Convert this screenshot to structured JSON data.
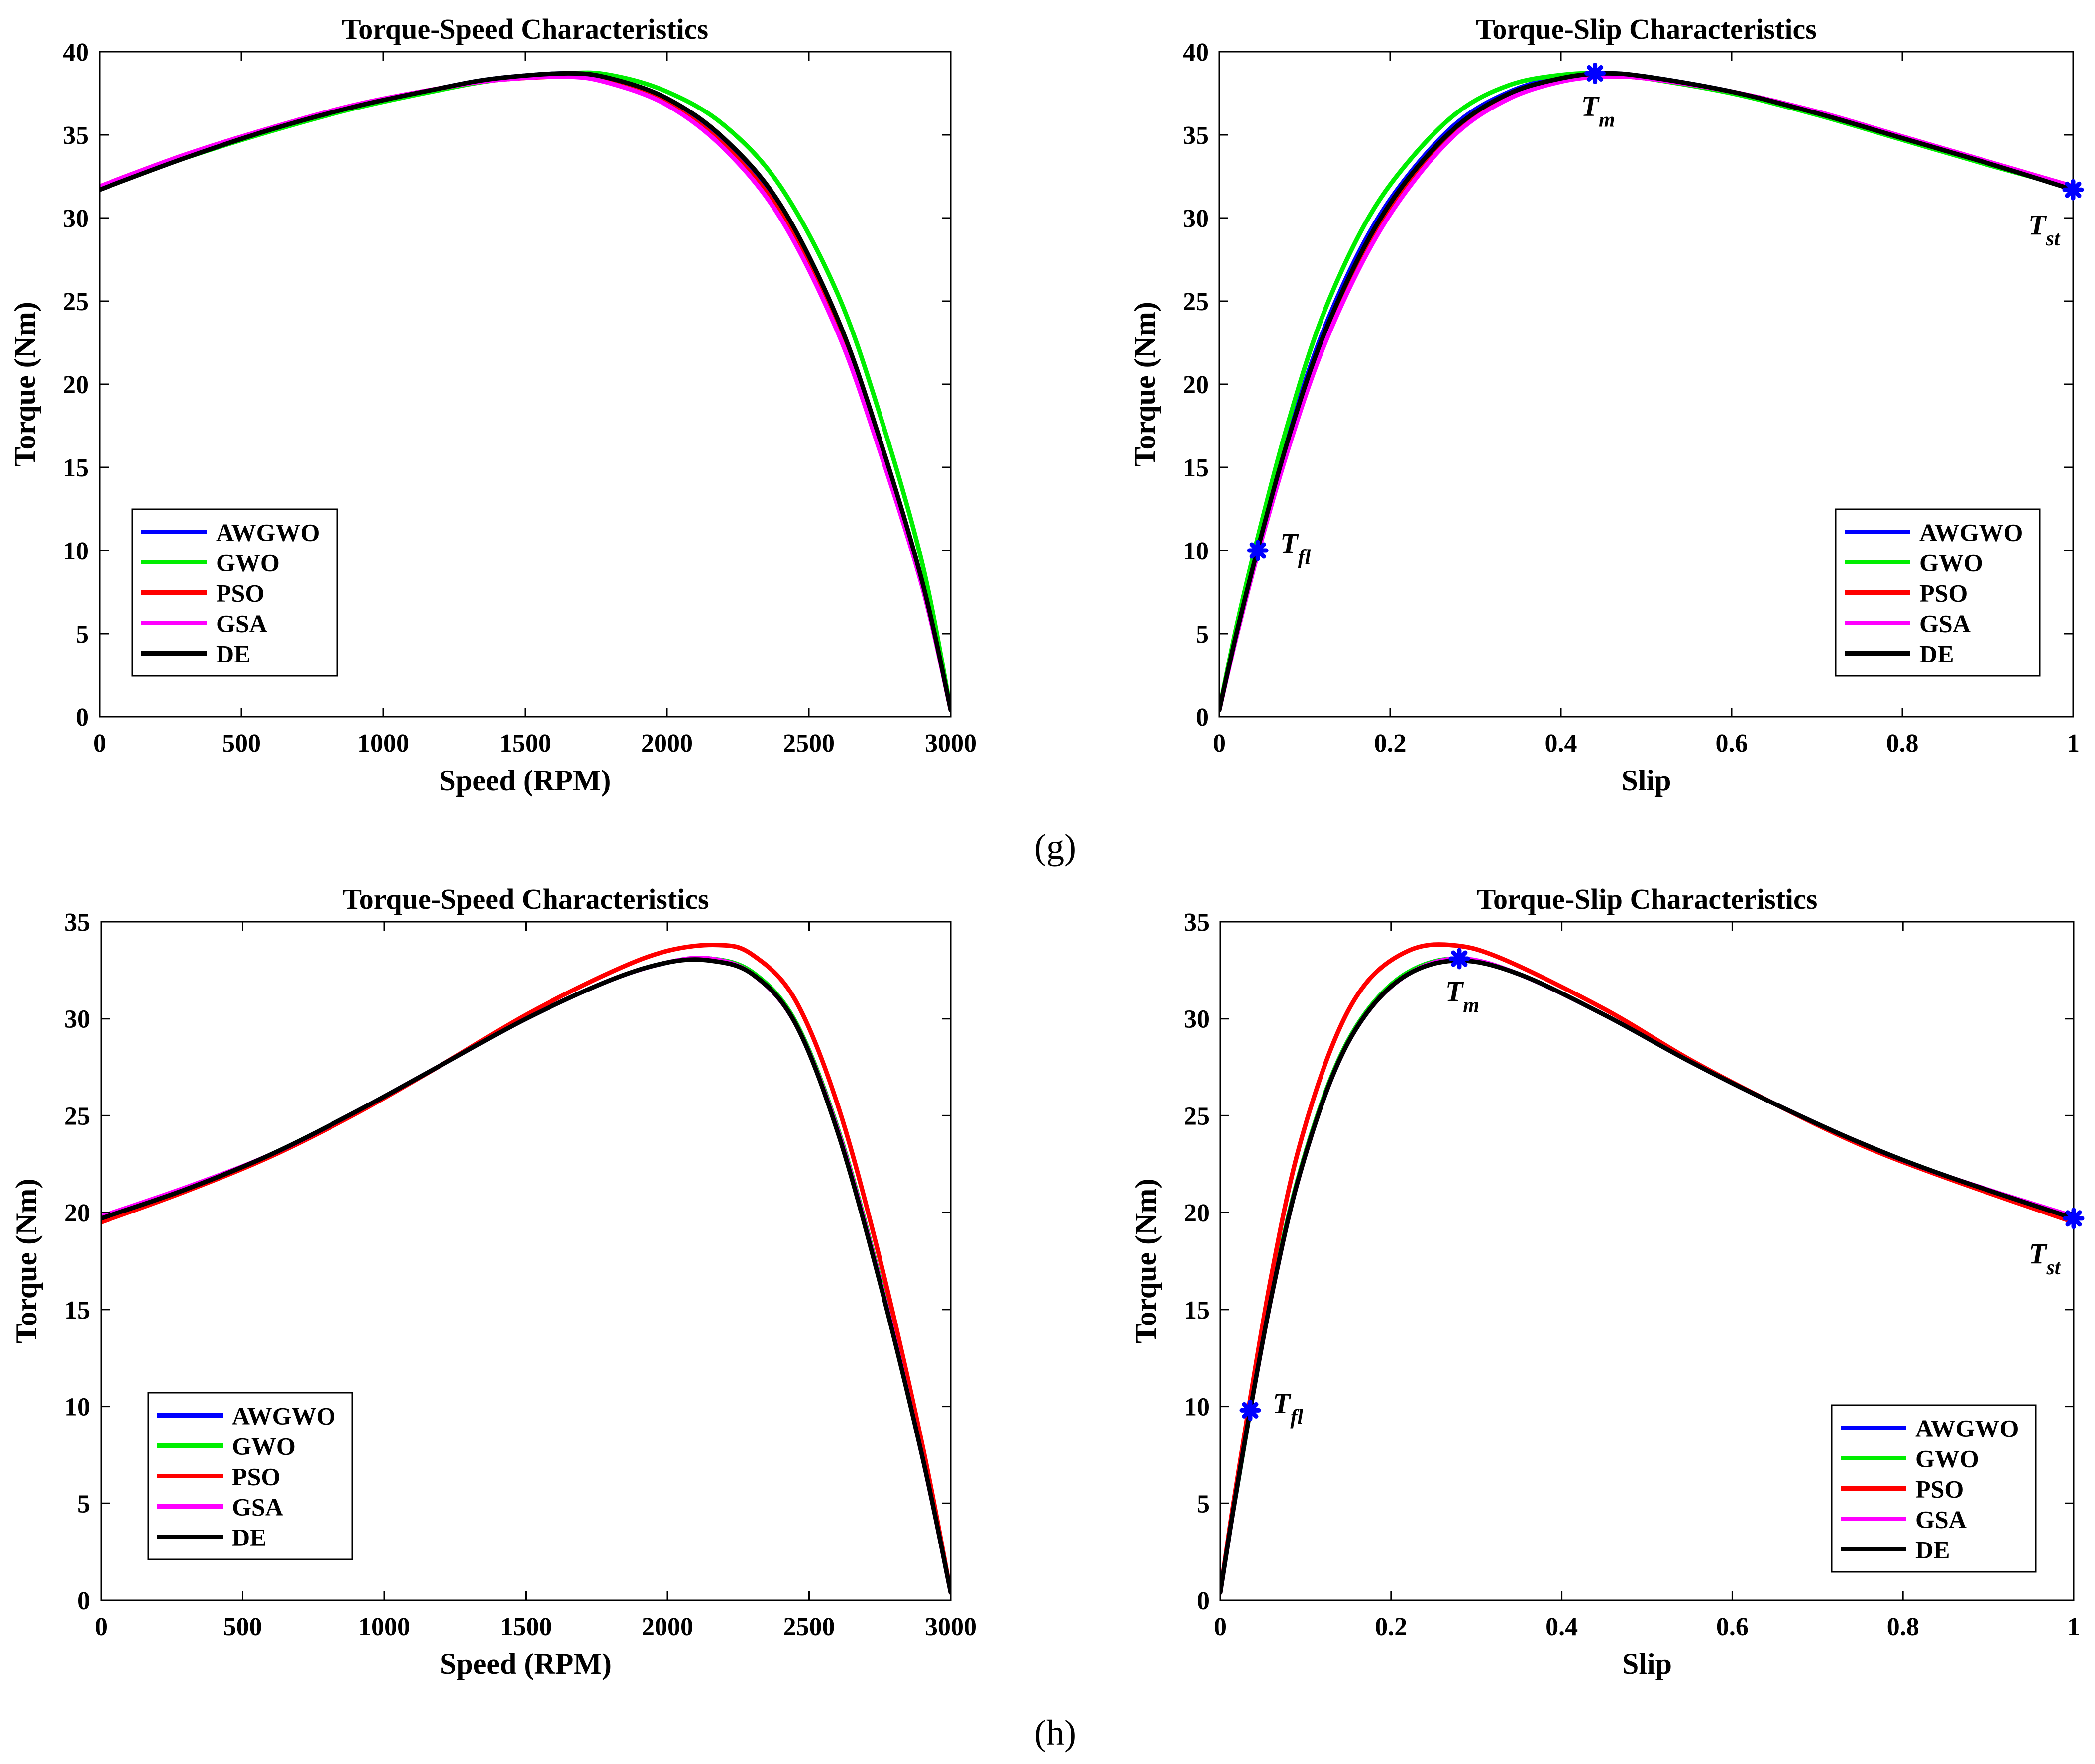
{
  "labels": {
    "g": "(g)",
    "h": "(h)"
  },
  "colors": {
    "AWGWO": "#0000ff",
    "GWO": "#00ee00",
    "PSO": "#ff0000",
    "GSA": "#ff00ff",
    "DE": "#000000",
    "marker": "#0000ff"
  },
  "chart_data": [
    {
      "id": "g-speed",
      "type": "line",
      "title": "Torque-Speed Characteristics",
      "xlabel": "Speed (RPM)",
      "ylabel": "Torque (Nm)",
      "xlim": [
        0,
        3000
      ],
      "ylim": [
        0,
        40
      ],
      "xticks": [
        0,
        500,
        1000,
        1500,
        2000,
        2500,
        3000
      ],
      "xticklabels": [
        "0",
        "500",
        "1000",
        "1500",
        "2000",
        "2500",
        "3000"
      ],
      "yticks": [
        0,
        5,
        10,
        15,
        20,
        25,
        30,
        35,
        40
      ],
      "yticklabels": [
        "0",
        "5",
        "10",
        "15",
        "20",
        "25",
        "30",
        "35",
        "40"
      ],
      "grid": false,
      "legend": "bottom-left",
      "series": [
        {
          "name": "AWGWO",
          "x": [
            0,
            300,
            600,
            900,
            1200,
            1400,
            1650,
            1800,
            2000,
            2200,
            2400,
            2600,
            2750,
            2900,
            3000
          ],
          "y": [
            31.8,
            33.7,
            35.3,
            36.7,
            37.8,
            38.4,
            38.7,
            38.4,
            37.1,
            34.7,
            30.6,
            23.8,
            16.5,
            8.0,
            0.4
          ]
        },
        {
          "name": "GWO",
          "x": [
            0,
            300,
            600,
            900,
            1200,
            1400,
            1650,
            1800,
            2000,
            2200,
            2400,
            2600,
            2750,
            2900,
            3000
          ],
          "y": [
            31.8,
            33.6,
            35.2,
            36.6,
            37.7,
            38.3,
            38.7,
            38.6,
            37.6,
            35.6,
            31.9,
            25.5,
            18.2,
            9.2,
            0.4
          ]
        },
        {
          "name": "PSO",
          "x": [
            0,
            300,
            600,
            900,
            1200,
            1400,
            1650,
            1800,
            2000,
            2200,
            2400,
            2600,
            2750,
            2900,
            3000
          ],
          "y": [
            31.9,
            33.8,
            35.4,
            36.8,
            37.8,
            38.3,
            38.5,
            38.2,
            36.9,
            34.4,
            30.3,
            23.5,
            16.3,
            7.9,
            0.4
          ]
        },
        {
          "name": "GSA",
          "x": [
            0,
            300,
            600,
            900,
            1200,
            1400,
            1650,
            1800,
            2000,
            2200,
            2400,
            2600,
            2750,
            2900,
            3000
          ],
          "y": [
            31.9,
            33.8,
            35.4,
            36.8,
            37.8,
            38.3,
            38.5,
            38.1,
            36.8,
            34.2,
            30.0,
            23.2,
            16.0,
            7.8,
            0.4
          ]
        },
        {
          "name": "DE",
          "x": [
            0,
            300,
            600,
            900,
            1200,
            1400,
            1650,
            1800,
            2000,
            2200,
            2400,
            2600,
            2750,
            2900,
            3000
          ],
          "y": [
            31.7,
            33.6,
            35.3,
            36.7,
            37.8,
            38.4,
            38.7,
            38.4,
            37.2,
            34.8,
            30.8,
            24.0,
            16.7,
            8.1,
            0.4
          ]
        }
      ]
    },
    {
      "id": "g-slip",
      "type": "line",
      "title": "Torque-Slip Characteristics",
      "xlabel": "Slip",
      "ylabel": "Torque (Nm)",
      "xlim": [
        0,
        1
      ],
      "ylim": [
        0,
        40
      ],
      "xticks": [
        0,
        0.2,
        0.4,
        0.6,
        0.8,
        1
      ],
      "xticklabels": [
        "0",
        "0.2",
        "0.4",
        "0.6",
        "0.8",
        "1"
      ],
      "yticks": [
        0,
        5,
        10,
        15,
        20,
        25,
        30,
        35,
        40
      ],
      "yticklabels": [
        "0",
        "5",
        "10",
        "15",
        "20",
        "25",
        "30",
        "35",
        "40"
      ],
      "grid": false,
      "legend": "bottom-right",
      "series": [
        {
          "name": "AWGWO",
          "x": [
            0,
            0.02,
            0.045,
            0.08,
            0.12,
            0.17,
            0.22,
            0.28,
            0.34,
            0.4,
            0.45,
            0.5,
            0.6,
            0.7,
            0.8,
            0.9,
            1.0
          ],
          "y": [
            0.4,
            5.1,
            10.3,
            16.8,
            23.0,
            28.6,
            32.5,
            35.8,
            37.6,
            38.5,
            38.7,
            38.5,
            37.6,
            36.3,
            34.8,
            33.3,
            31.8
          ]
        },
        {
          "name": "GWO",
          "x": [
            0,
            0.02,
            0.045,
            0.08,
            0.12,
            0.17,
            0.22,
            0.28,
            0.34,
            0.4,
            0.45,
            0.5,
            0.6,
            0.7,
            0.8,
            0.9,
            1.0
          ],
          "y": [
            0.4,
            5.4,
            10.8,
            17.6,
            24.0,
            29.6,
            33.3,
            36.4,
            38.0,
            38.6,
            38.7,
            38.4,
            37.5,
            36.2,
            34.7,
            33.2,
            31.8
          ]
        },
        {
          "name": "PSO",
          "x": [
            0,
            0.02,
            0.045,
            0.08,
            0.12,
            0.17,
            0.22,
            0.28,
            0.34,
            0.4,
            0.45,
            0.5,
            0.6,
            0.7,
            0.8,
            0.9,
            1.0
          ],
          "y": [
            0.4,
            4.9,
            10.0,
            16.3,
            22.4,
            28.0,
            32.0,
            35.4,
            37.3,
            38.3,
            38.5,
            38.4,
            37.6,
            36.4,
            34.9,
            33.4,
            31.9
          ]
        },
        {
          "name": "GSA",
          "x": [
            0,
            0.02,
            0.045,
            0.08,
            0.12,
            0.17,
            0.22,
            0.28,
            0.34,
            0.4,
            0.45,
            0.5,
            0.6,
            0.7,
            0.8,
            0.9,
            1.0
          ],
          "y": [
            0.4,
            4.8,
            9.8,
            16.0,
            22.0,
            27.6,
            31.7,
            35.2,
            37.2,
            38.2,
            38.5,
            38.4,
            37.6,
            36.4,
            34.9,
            33.4,
            31.9
          ]
        },
        {
          "name": "DE",
          "x": [
            0,
            0.02,
            0.045,
            0.08,
            0.12,
            0.17,
            0.22,
            0.28,
            0.34,
            0.4,
            0.45,
            0.5,
            0.6,
            0.7,
            0.8,
            0.9,
            1.0
          ],
          "y": [
            0.4,
            5.0,
            10.1,
            16.6,
            22.7,
            28.3,
            32.3,
            35.6,
            37.5,
            38.4,
            38.7,
            38.5,
            37.6,
            36.3,
            34.8,
            33.3,
            31.7
          ]
        }
      ],
      "markers": [
        {
          "label_main": "T",
          "label_sub": "fl",
          "x": 0.045,
          "y": 10.0,
          "label_pos": "right"
        },
        {
          "label_main": "T",
          "label_sub": "m",
          "x": 0.44,
          "y": 38.7,
          "label_pos": "below"
        },
        {
          "label_main": "T",
          "label_sub": "st",
          "x": 1.0,
          "y": 31.7,
          "label_pos": "below-left"
        }
      ]
    },
    {
      "id": "h-speed",
      "type": "line",
      "title": "Torque-Speed Characteristics",
      "xlabel": "Speed (RPM)",
      "ylabel": "Torque (Nm)",
      "xlim": [
        0,
        3000
      ],
      "ylim": [
        0,
        35
      ],
      "xticks": [
        0,
        500,
        1000,
        1500,
        2000,
        2500,
        3000
      ],
      "xticklabels": [
        "0",
        "500",
        "1000",
        "1500",
        "2000",
        "2500",
        "3000"
      ],
      "yticks": [
        0,
        5,
        10,
        15,
        20,
        25,
        30,
        35
      ],
      "yticklabels": [
        "0",
        "5",
        "10",
        "15",
        "20",
        "25",
        "30",
        "35"
      ],
      "grid": false,
      "legend": "bottom-left",
      "series": [
        {
          "name": "AWGWO",
          "x": [
            0,
            300,
            600,
            900,
            1200,
            1500,
            1800,
            2000,
            2150,
            2300,
            2450,
            2600,
            2750,
            2900,
            3000
          ],
          "y": [
            19.7,
            21.2,
            23.0,
            25.2,
            27.6,
            30.0,
            32.0,
            32.9,
            33.1,
            32.4,
            29.9,
            24.4,
            16.6,
            7.5,
            0.4
          ]
        },
        {
          "name": "GWO",
          "x": [
            0,
            300,
            600,
            900,
            1200,
            1500,
            1800,
            2000,
            2150,
            2300,
            2450,
            2600,
            2750,
            2900,
            3000
          ],
          "y": [
            19.7,
            21.2,
            23.0,
            25.2,
            27.6,
            30.0,
            32.0,
            32.9,
            33.1,
            32.4,
            29.9,
            24.4,
            16.6,
            7.5,
            0.4
          ]
        },
        {
          "name": "PSO",
          "x": [
            0,
            300,
            600,
            900,
            1200,
            1500,
            1800,
            2000,
            2180,
            2300,
            2450,
            2600,
            2750,
            2900,
            3000
          ],
          "y": [
            19.5,
            21.1,
            22.9,
            25.1,
            27.6,
            30.2,
            32.4,
            33.5,
            33.8,
            33.3,
            31.0,
            25.6,
            17.6,
            8.0,
            0.4
          ]
        },
        {
          "name": "GSA",
          "x": [
            0,
            300,
            600,
            900,
            1200,
            1500,
            1800,
            2000,
            2150,
            2300,
            2450,
            2600,
            2750,
            2900,
            3000
          ],
          "y": [
            19.8,
            21.3,
            23.0,
            25.2,
            27.6,
            30.0,
            32.0,
            32.9,
            33.1,
            32.3,
            29.8,
            24.3,
            16.5,
            7.4,
            0.4
          ]
        },
        {
          "name": "DE",
          "x": [
            0,
            300,
            600,
            900,
            1200,
            1500,
            1800,
            2000,
            2150,
            2300,
            2450,
            2600,
            2750,
            2900,
            3000
          ],
          "y": [
            19.7,
            21.2,
            23.0,
            25.2,
            27.6,
            30.0,
            32.0,
            32.9,
            33.0,
            32.3,
            29.8,
            24.2,
            16.4,
            7.4,
            0.4
          ]
        }
      ]
    },
    {
      "id": "h-slip",
      "type": "line",
      "title": "Torque-Slip Characteristics",
      "xlabel": "Slip",
      "ylabel": "Torque (Nm)",
      "xlim": [
        0,
        1
      ],
      "ylim": [
        0,
        35
      ],
      "xticks": [
        0,
        0.2,
        0.4,
        0.6,
        0.8,
        1
      ],
      "xticklabels": [
        "0",
        "0.2",
        "0.4",
        "0.6",
        "0.8",
        "1"
      ],
      "yticks": [
        0,
        5,
        10,
        15,
        20,
        25,
        30,
        35
      ],
      "yticklabels": [
        "0",
        "5",
        "10",
        "15",
        "20",
        "25",
        "30",
        "35"
      ],
      "grid": false,
      "legend": "bottom-right",
      "series": [
        {
          "name": "AWGWO",
          "x": [
            0,
            0.015,
            0.035,
            0.06,
            0.09,
            0.13,
            0.17,
            0.22,
            0.28,
            0.35,
            0.45,
            0.55,
            0.65,
            0.75,
            0.85,
            1.0
          ],
          "y": [
            0.4,
            4.6,
            9.8,
            15.8,
            21.6,
            27.0,
            30.3,
            32.4,
            33.1,
            32.3,
            30.2,
            27.8,
            25.6,
            23.6,
            21.9,
            19.7
          ]
        },
        {
          "name": "GWO",
          "x": [
            0,
            0.015,
            0.035,
            0.06,
            0.09,
            0.13,
            0.17,
            0.22,
            0.28,
            0.35,
            0.45,
            0.55,
            0.65,
            0.75,
            0.85,
            1.0
          ],
          "y": [
            0.4,
            4.6,
            9.8,
            15.8,
            21.6,
            27.0,
            30.3,
            32.4,
            33.1,
            32.3,
            30.2,
            27.8,
            25.6,
            23.6,
            21.9,
            19.7
          ]
        },
        {
          "name": "PSO",
          "x": [
            0,
            0.015,
            0.035,
            0.06,
            0.09,
            0.13,
            0.17,
            0.22,
            0.27,
            0.33,
            0.45,
            0.55,
            0.65,
            0.75,
            0.85,
            1.0
          ],
          "y": [
            0.4,
            4.9,
            10.4,
            16.8,
            23.0,
            28.5,
            31.8,
            33.5,
            33.8,
            33.1,
            30.5,
            27.9,
            25.6,
            23.5,
            21.8,
            19.5
          ]
        },
        {
          "name": "GSA",
          "x": [
            0,
            0.015,
            0.035,
            0.06,
            0.09,
            0.13,
            0.17,
            0.22,
            0.28,
            0.35,
            0.45,
            0.55,
            0.65,
            0.75,
            0.85,
            1.0
          ],
          "y": [
            0.4,
            4.6,
            9.8,
            15.7,
            21.5,
            26.9,
            30.2,
            32.3,
            33.1,
            32.3,
            30.2,
            27.8,
            25.6,
            23.6,
            21.9,
            19.8
          ]
        },
        {
          "name": "DE",
          "x": [
            0,
            0.015,
            0.035,
            0.06,
            0.09,
            0.13,
            0.17,
            0.22,
            0.28,
            0.35,
            0.45,
            0.55,
            0.65,
            0.75,
            0.85,
            1.0
          ],
          "y": [
            0.4,
            4.6,
            9.8,
            15.7,
            21.5,
            26.9,
            30.2,
            32.3,
            33.0,
            32.3,
            30.2,
            27.8,
            25.6,
            23.6,
            21.9,
            19.7
          ]
        }
      ],
      "markers": [
        {
          "label_main": "T",
          "label_sub": "fl",
          "x": 0.035,
          "y": 9.8,
          "label_pos": "right"
        },
        {
          "label_main": "T",
          "label_sub": "m",
          "x": 0.28,
          "y": 33.1,
          "label_pos": "below"
        },
        {
          "label_main": "T",
          "label_sub": "st",
          "x": 1.0,
          "y": 19.7,
          "label_pos": "below-left"
        }
      ]
    }
  ]
}
